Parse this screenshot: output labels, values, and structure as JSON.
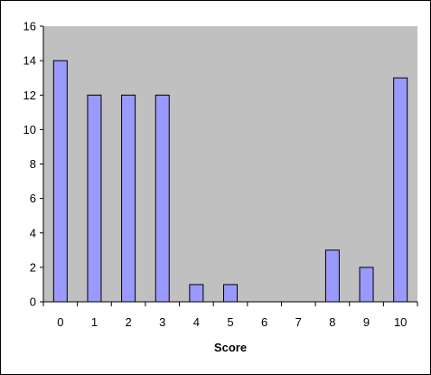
{
  "chart_data": {
    "type": "bar",
    "categories": [
      "0",
      "1",
      "2",
      "3",
      "4",
      "5",
      "6",
      "7",
      "8",
      "9",
      "10"
    ],
    "values": [
      14,
      12,
      12,
      12,
      1,
      1,
      0,
      0,
      3,
      2,
      13
    ],
    "title": "",
    "xlabel": "Score",
    "ylabel": "",
    "ylim": [
      0,
      16
    ],
    "yticks": [
      "0",
      "2",
      "4",
      "6",
      "8",
      "10",
      "12",
      "14",
      "16"
    ],
    "grid": false,
    "legend": "none",
    "colors": {
      "plot_background": "#c0c0c0",
      "bar_fill": "#9999ff",
      "bar_stroke": "#000000",
      "axis": "#000000"
    }
  }
}
